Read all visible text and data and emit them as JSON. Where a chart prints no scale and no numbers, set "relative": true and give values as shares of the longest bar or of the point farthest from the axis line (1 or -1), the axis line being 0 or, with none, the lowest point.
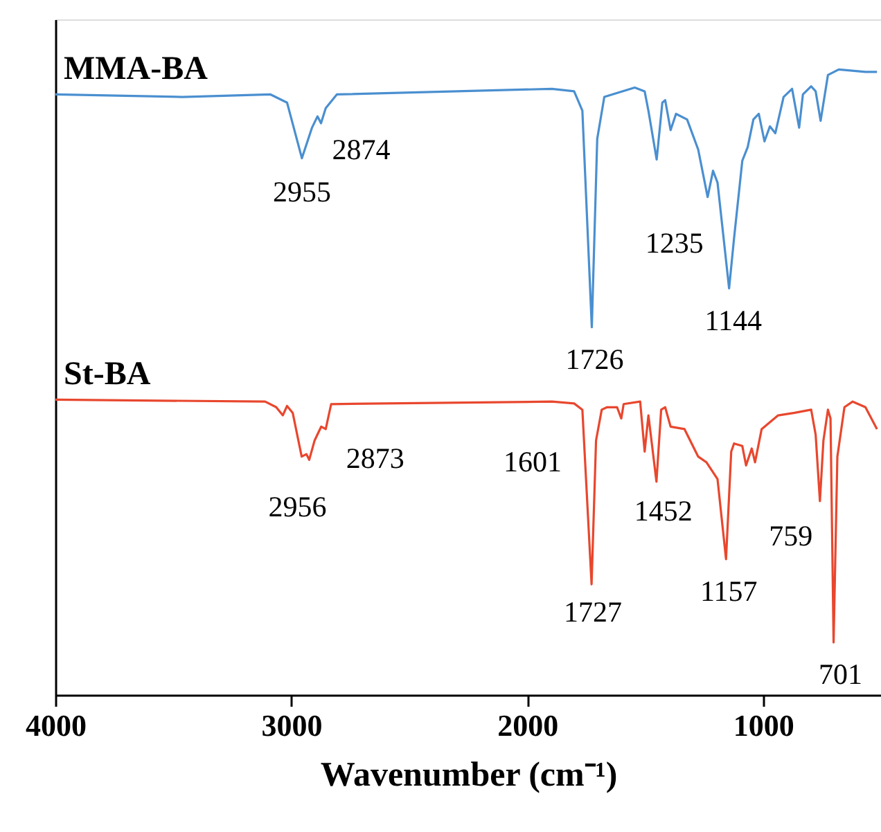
{
  "chart_data": {
    "type": "line",
    "relative": true,
    "xlabel": "Wavenumber (cm⁻¹)",
    "xlim": [
      4000,
      500
    ],
    "xticks": [
      4000,
      3000,
      2000,
      1000
    ],
    "tick_labels": "x",
    "line_style": "solid",
    "marker": "none",
    "series": [
      {
        "name": "MMA-BA",
        "color": "#4a8fd0",
        "x": [
          4000,
          3462,
          3088,
          3018,
          2955,
          2912,
          2889,
          2874,
          2854,
          2807,
          1895,
          1801,
          1766,
          1726,
          1703,
          1673,
          1544,
          1502,
          1486,
          1451,
          1427,
          1415,
          1392,
          1369,
          1322,
          1275,
          1235,
          1212,
          1193,
          1144,
          1123,
          1088,
          1065,
          1041,
          1018,
          994,
          971,
          948,
          913,
          877,
          847,
          831,
          796,
          777,
          756,
          725,
          679,
          566,
          517
        ],
        "values": [
          0.96,
          0.956,
          0.96,
          0.947,
          0.858,
          0.907,
          0.925,
          0.914,
          0.938,
          0.96,
          0.969,
          0.965,
          0.934,
          0.588,
          0.889,
          0.956,
          0.971,
          0.965,
          0.934,
          0.856,
          0.947,
          0.951,
          0.903,
          0.929,
          0.92,
          0.872,
          0.796,
          0.838,
          0.819,
          0.65,
          0.73,
          0.854,
          0.876,
          0.92,
          0.929,
          0.885,
          0.909,
          0.898,
          0.956,
          0.969,
          0.907,
          0.96,
          0.973,
          0.965,
          0.918,
          0.991,
          1.0,
          0.996,
          0.996
        ]
      },
      {
        "name": "St-BA",
        "color": "#e8472e",
        "x": [
          4000,
          3111,
          3064,
          3036,
          3018,
          2994,
          2956,
          2936,
          2924,
          2901,
          2873,
          2854,
          2831,
          1895,
          1801,
          1766,
          1727,
          1708,
          1684,
          1661,
          1619,
          1601,
          1591,
          1521,
          1502,
          1486,
          1452,
          1432,
          1415,
          1392,
          1333,
          1275,
          1240,
          1193,
          1157,
          1135,
          1123,
          1088,
          1072,
          1048,
          1034,
          1006,
          936,
          866,
          796,
          777,
          759,
          744,
          725,
          714,
          701,
          685,
          655,
          620,
          566,
          517
        ],
        "values": [
          0.472,
          0.469,
          0.46,
          0.447,
          0.462,
          0.451,
          0.381,
          0.385,
          0.376,
          0.407,
          0.429,
          0.425,
          0.465,
          0.469,
          0.466,
          0.456,
          0.177,
          0.407,
          0.456,
          0.46,
          0.46,
          0.442,
          0.465,
          0.469,
          0.389,
          0.447,
          0.341,
          0.456,
          0.46,
          0.429,
          0.425,
          0.381,
          0.372,
          0.345,
          0.217,
          0.389,
          0.402,
          0.398,
          0.367,
          0.394,
          0.372,
          0.425,
          0.447,
          0.451,
          0.456,
          0.416,
          0.31,
          0.407,
          0.456,
          0.442,
          0.084,
          0.381,
          0.46,
          0.469,
          0.46,
          0.425
        ]
      }
    ],
    "annotations": [
      {
        "text": "2955",
        "x": 2955,
        "y": 0.858
      },
      {
        "text": "2874",
        "x": 2874,
        "y": 0.914
      },
      {
        "text": "1726",
        "x": 1726,
        "y": 0.588
      },
      {
        "text": "1235",
        "x": 1235,
        "y": 0.796
      },
      {
        "text": "1144",
        "x": 1144,
        "y": 0.65
      },
      {
        "text": "2956",
        "x": 2956,
        "y": 0.381
      },
      {
        "text": "2873",
        "x": 2873,
        "y": 0.429
      },
      {
        "text": "1601",
        "x": 1601,
        "y": 0.442
      },
      {
        "text": "1727",
        "x": 1727,
        "y": 0.177
      },
      {
        "text": "1452",
        "x": 1452,
        "y": 0.341
      },
      {
        "text": "1157",
        "x": 1157,
        "y": 0.217
      },
      {
        "text": "759",
        "x": 759,
        "y": 0.31
      },
      {
        "text": "701",
        "x": 701,
        "y": 0.084
      }
    ]
  }
}
